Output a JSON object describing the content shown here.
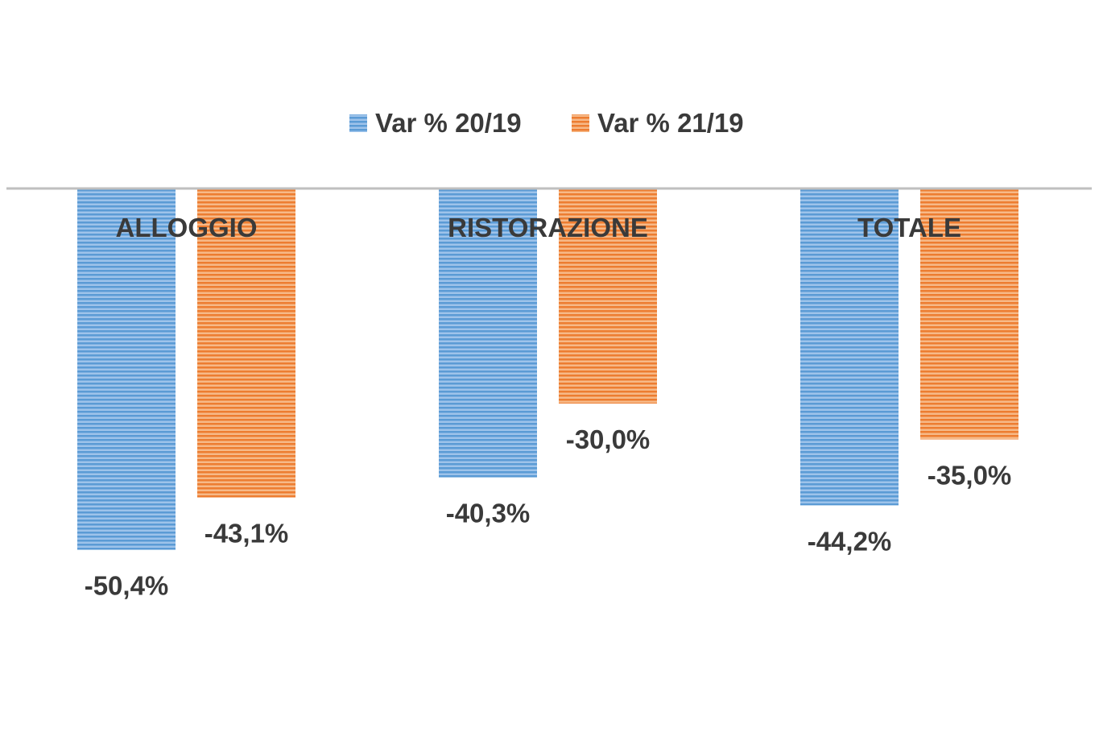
{
  "chart_data": {
    "type": "bar",
    "orientation": "vertical",
    "categories": [
      "ALLOGGIO",
      "RISTORAZIONE",
      "TOTALE"
    ],
    "series": [
      {
        "name": "Var % 20/19",
        "values": [
          -50.4,
          -40.3,
          -44.2
        ],
        "labels": [
          "-50,4%",
          "-40,3%",
          "-44,2%"
        ],
        "color": "#5b9bd5"
      },
      {
        "name": "Var % 21/19",
        "values": [
          -43.1,
          -30.0,
          -35.0
        ],
        "labels": [
          "-43,1%",
          "-30,0%",
          "-35,0%"
        ],
        "color": "#ed7d31"
      }
    ],
    "ylim": [
      -60,
      0
    ],
    "category_labels_position": "top",
    "legend": "top",
    "grid": false,
    "axis_line_color": "#bfbfbf"
  }
}
